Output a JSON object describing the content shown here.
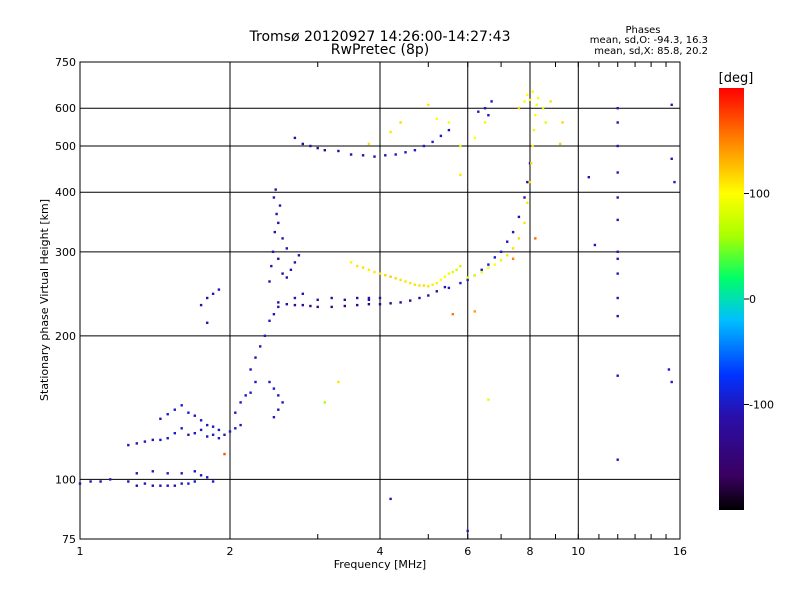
{
  "chart_data": {
    "type": "scatter",
    "title": "Tromsø 20120927 14:26:00-14:27:43",
    "subtitle": "RwPretec (8p)",
    "stats": {
      "heading": "Phases",
      "line_o": "mean, sd,O: -94.3, 16.3",
      "line_x": "mean, sd,X:  85.8, 20.2"
    },
    "xlabel": "Frequency [MHz]",
    "ylabel": "Stationary phase Virtual Height [km]",
    "x_scale": "log",
    "y_scale": "log",
    "xlim": [
      1,
      16
    ],
    "ylim": [
      75,
      750
    ],
    "x_ticks": [
      1,
      2,
      4,
      6,
      8,
      10,
      16
    ],
    "y_ticks": [
      75,
      100,
      200,
      300,
      400,
      500,
      600,
      750
    ],
    "grid": true,
    "colorbar": {
      "label": "[deg]",
      "min": -200,
      "max": 200,
      "ticks": [
        100,
        0,
        -100
      ],
      "colormap": [
        "#000000",
        "#3a0060",
        "#2a0fa8",
        "#0033ff",
        "#00bfff",
        "#00ff66",
        "#aaff00",
        "#ffff00",
        "#ff8800",
        "#ff0000"
      ]
    },
    "series": [
      {
        "points": [
          [
            1.0,
            98,
            -110
          ],
          [
            1.05,
            99,
            -108
          ],
          [
            1.1,
            99,
            -112
          ],
          [
            1.15,
            100,
            -105
          ],
          [
            1.25,
            99,
            -110
          ],
          [
            1.3,
            97,
            -112
          ],
          [
            1.35,
            98,
            -108
          ],
          [
            1.4,
            97,
            -115
          ],
          [
            1.45,
            97,
            -110
          ],
          [
            1.5,
            97,
            -112
          ],
          [
            1.55,
            97,
            -106
          ],
          [
            1.6,
            98,
            -105
          ],
          [
            1.65,
            98,
            -100
          ],
          [
            1.7,
            99,
            -95
          ],
          [
            1.75,
            102,
            -100
          ],
          [
            1.8,
            101,
            -98
          ],
          [
            1.85,
            99,
            -96
          ],
          [
            1.3,
            103,
            -100
          ],
          [
            1.4,
            104,
            -96
          ],
          [
            1.5,
            103,
            -98
          ],
          [
            1.6,
            103,
            -100
          ],
          [
            1.7,
            104,
            -102
          ],
          [
            1.25,
            118,
            -105
          ],
          [
            1.3,
            119,
            -110
          ],
          [
            1.35,
            120,
            -108
          ],
          [
            1.4,
            121,
            -112
          ],
          [
            1.45,
            121,
            -106
          ],
          [
            1.5,
            122,
            -108
          ],
          [
            1.55,
            125,
            -100
          ],
          [
            1.6,
            128,
            -95
          ],
          [
            1.65,
            124,
            -102
          ],
          [
            1.7,
            125,
            -100
          ],
          [
            1.75,
            127,
            -98
          ],
          [
            1.8,
            123,
            -104
          ],
          [
            1.85,
            124,
            -100
          ],
          [
            1.9,
            122,
            -98
          ],
          [
            1.95,
            124,
            -100
          ],
          [
            2.0,
            126,
            -100
          ],
          [
            2.05,
            128,
            -102
          ],
          [
            2.1,
            130,
            -105
          ],
          [
            1.45,
            134,
            -100
          ],
          [
            1.5,
            137,
            -96
          ],
          [
            1.55,
            140,
            -95
          ],
          [
            1.6,
            143,
            -92
          ],
          [
            1.65,
            138,
            -98
          ],
          [
            1.7,
            136,
            -100
          ],
          [
            1.75,
            133,
            -99
          ],
          [
            1.8,
            130,
            -100
          ],
          [
            1.85,
            129,
            -101
          ],
          [
            1.9,
            127,
            -103
          ],
          [
            2.05,
            138,
            -104
          ],
          [
            2.1,
            145,
            -100
          ],
          [
            2.15,
            150,
            -98
          ],
          [
            2.2,
            152,
            -100
          ],
          [
            2.25,
            160,
            -102
          ],
          [
            2.2,
            170,
            -106
          ],
          [
            2.25,
            180,
            -104
          ],
          [
            2.3,
            190,
            -102
          ],
          [
            2.35,
            200,
            -100
          ],
          [
            2.4,
            215,
            -100
          ],
          [
            2.45,
            222,
            -105
          ],
          [
            2.5,
            230,
            -108
          ],
          [
            2.4,
            160,
            -100
          ],
          [
            2.45,
            155,
            -102
          ],
          [
            2.5,
            150,
            -100
          ],
          [
            2.55,
            145,
            -98
          ],
          [
            2.45,
            135,
            -100
          ],
          [
            2.5,
            140,
            -102
          ],
          [
            1.8,
            240,
            -110
          ],
          [
            1.85,
            245,
            -108
          ],
          [
            1.9,
            250,
            -105
          ],
          [
            1.75,
            232,
            -112
          ],
          [
            1.8,
            213,
            -108
          ],
          [
            2.4,
            260,
            -110
          ],
          [
            2.42,
            280,
            -108
          ],
          [
            2.44,
            300,
            -105
          ],
          [
            2.46,
            330,
            -110
          ],
          [
            2.48,
            360,
            -112
          ],
          [
            2.45,
            390,
            -108
          ],
          [
            2.47,
            405,
            -110
          ],
          [
            2.5,
            290,
            -115
          ],
          [
            2.55,
            270,
            -112
          ],
          [
            2.6,
            265,
            -110
          ],
          [
            2.65,
            275,
            -108
          ],
          [
            2.7,
            285,
            -112
          ],
          [
            2.75,
            295,
            -110
          ],
          [
            2.5,
            345,
            -112
          ],
          [
            2.52,
            375,
            -110
          ],
          [
            2.55,
            320,
            -108
          ],
          [
            2.6,
            305,
            -110
          ],
          [
            2.5,
            235,
            -120
          ],
          [
            2.6,
            233,
            -125
          ],
          [
            2.7,
            232,
            -130
          ],
          [
            2.8,
            232,
            -135
          ],
          [
            2.9,
            231,
            -140
          ],
          [
            3.0,
            230,
            -145
          ],
          [
            3.2,
            230,
            -150
          ],
          [
            3.4,
            231,
            -150
          ],
          [
            3.6,
            232,
            -150
          ],
          [
            3.8,
            233,
            -148
          ],
          [
            4.0,
            233,
            -145
          ],
          [
            4.2,
            234,
            -140
          ],
          [
            4.4,
            235,
            -135
          ],
          [
            4.6,
            237,
            -130
          ],
          [
            4.8,
            240,
            -125
          ],
          [
            5.0,
            243,
            -120
          ],
          [
            5.2,
            248,
            -115
          ],
          [
            5.4,
            253,
            -110
          ],
          [
            2.7,
            240,
            -110
          ],
          [
            2.8,
            245,
            -112
          ],
          [
            3.0,
            238,
            -115
          ],
          [
            3.2,
            240,
            -118
          ],
          [
            3.4,
            238,
            -120
          ],
          [
            3.6,
            240,
            -118
          ],
          [
            3.8,
            238,
            -116
          ],
          [
            4.0,
            240,
            -115
          ],
          [
            2.7,
            520,
            -120
          ],
          [
            2.8,
            505,
            -125
          ],
          [
            2.9,
            500,
            -128
          ],
          [
            3.0,
            495,
            -130
          ],
          [
            3.1,
            490,
            -128
          ],
          [
            3.3,
            488,
            -125
          ],
          [
            3.5,
            480,
            -120
          ],
          [
            3.7,
            478,
            -118
          ],
          [
            3.9,
            475,
            -115
          ],
          [
            4.1,
            478,
            -110
          ],
          [
            4.3,
            480,
            -108
          ],
          [
            4.5,
            485,
            -105
          ],
          [
            4.7,
            490,
            -100
          ],
          [
            4.9,
            500,
            -98
          ],
          [
            5.1,
            510,
            -95
          ],
          [
            5.3,
            525,
            -100
          ],
          [
            5.5,
            540,
            -105
          ],
          [
            5.5,
            252,
            -100
          ],
          [
            5.8,
            258,
            -98
          ],
          [
            6.0,
            262,
            -95
          ],
          [
            6.2,
            268,
            -100
          ],
          [
            6.4,
            275,
            -105
          ],
          [
            6.6,
            282,
            -100
          ],
          [
            6.8,
            292,
            -98
          ],
          [
            7.0,
            300,
            -100
          ],
          [
            7.2,
            315,
            -105
          ],
          [
            7.4,
            330,
            -110
          ],
          [
            7.6,
            355,
            -115
          ],
          [
            7.8,
            390,
            -120
          ],
          [
            7.9,
            420,
            -118
          ],
          [
            8.0,
            460,
            -115
          ],
          [
            6.5,
            600,
            -100
          ],
          [
            6.6,
            580,
            -105
          ],
          [
            6.7,
            620,
            -98
          ],
          [
            6.3,
            590,
            -100
          ],
          [
            12,
            600,
            -100
          ],
          [
            12,
            560,
            -105
          ],
          [
            12,
            500,
            -110
          ],
          [
            12,
            440,
            -100
          ],
          [
            12,
            390,
            -105
          ],
          [
            12,
            350,
            -102
          ],
          [
            12,
            300,
            -100
          ],
          [
            12,
            290,
            -102
          ],
          [
            12,
            270,
            -100
          ],
          [
            12,
            240,
            -105
          ],
          [
            12,
            220,
            -110
          ],
          [
            12,
            165,
            -105
          ],
          [
            12,
            110,
            -100
          ],
          [
            15.4,
            610,
            -100
          ],
          [
            15.4,
            470,
            -105
          ],
          [
            15.6,
            420,
            -100
          ],
          [
            15.2,
            170,
            -105
          ],
          [
            15.4,
            160,
            -100
          ],
          [
            10.5,
            430,
            -110
          ],
          [
            10.8,
            310,
            -102
          ],
          [
            6.0,
            78,
            -100
          ],
          [
            4.2,
            91,
            -110
          ],
          [
            3.8,
            240,
            -105
          ]
        ]
      },
      {
        "points": [
          [
            3.5,
            285,
            105
          ],
          [
            3.6,
            280,
            110
          ],
          [
            3.7,
            278,
            112
          ],
          [
            3.8,
            275,
            108
          ],
          [
            3.9,
            272,
            110
          ],
          [
            4.0,
            270,
            115
          ],
          [
            4.1,
            268,
            118
          ],
          [
            4.2,
            266,
            120
          ],
          [
            4.3,
            264,
            115
          ],
          [
            4.4,
            262,
            112
          ],
          [
            4.5,
            260,
            110
          ],
          [
            4.6,
            258,
            108
          ],
          [
            4.7,
            256,
            110
          ],
          [
            4.8,
            255,
            112
          ],
          [
            4.9,
            255,
            115
          ],
          [
            5.0,
            254,
            110
          ],
          [
            5.1,
            256,
            108
          ],
          [
            5.2,
            258,
            105
          ],
          [
            5.3,
            262,
            100
          ],
          [
            5.4,
            266,
            95
          ],
          [
            5.5,
            270,
            90
          ],
          [
            5.6,
            272,
            85
          ],
          [
            5.7,
            275,
            80
          ],
          [
            5.8,
            280,
            75
          ],
          [
            6.0,
            265,
            80
          ],
          [
            6.2,
            268,
            85
          ],
          [
            6.4,
            272,
            90
          ],
          [
            6.6,
            278,
            95
          ],
          [
            6.8,
            282,
            100
          ],
          [
            7.0,
            288,
            105
          ],
          [
            7.2,
            295,
            110
          ],
          [
            7.4,
            305,
            112
          ],
          [
            7.6,
            320,
            115
          ],
          [
            7.8,
            345,
            110
          ],
          [
            7.9,
            380,
            108
          ],
          [
            8.0,
            420,
            112
          ],
          [
            8.05,
            460,
            110
          ],
          [
            8.1,
            500,
            108
          ],
          [
            8.15,
            540,
            105
          ],
          [
            8.2,
            580,
            100
          ],
          [
            8.25,
            610,
            95
          ],
          [
            8.3,
            630,
            98
          ],
          [
            7.9,
            640,
            100
          ],
          [
            8.0,
            625,
            105
          ],
          [
            8.1,
            650,
            102
          ],
          [
            7.8,
            620,
            95
          ],
          [
            8.5,
            600,
            80
          ],
          [
            8.6,
            560,
            85
          ],
          [
            5.0,
            610,
            110
          ],
          [
            5.2,
            570,
            100
          ],
          [
            5.5,
            560,
            95
          ],
          [
            5.8,
            500,
            90
          ],
          [
            6.2,
            520,
            100
          ],
          [
            5.8,
            435,
            110
          ],
          [
            6.5,
            560,
            105
          ],
          [
            3.8,
            505,
            112
          ],
          [
            4.4,
            560,
            115
          ],
          [
            4.2,
            535,
            110
          ],
          [
            3.3,
            160,
            110
          ],
          [
            3.1,
            145,
            60
          ],
          [
            6.6,
            147,
            85
          ],
          [
            9.2,
            505,
            120
          ],
          [
            9.3,
            560,
            115
          ],
          [
            6.2,
            225,
            140
          ],
          [
            7.4,
            290,
            150
          ],
          [
            5.6,
            222,
            155
          ],
          [
            1.95,
            113,
            170
          ],
          [
            8.2,
            320,
            160
          ],
          [
            7.6,
            600,
            118
          ],
          [
            8.8,
            620,
            112
          ]
        ]
      }
    ]
  }
}
